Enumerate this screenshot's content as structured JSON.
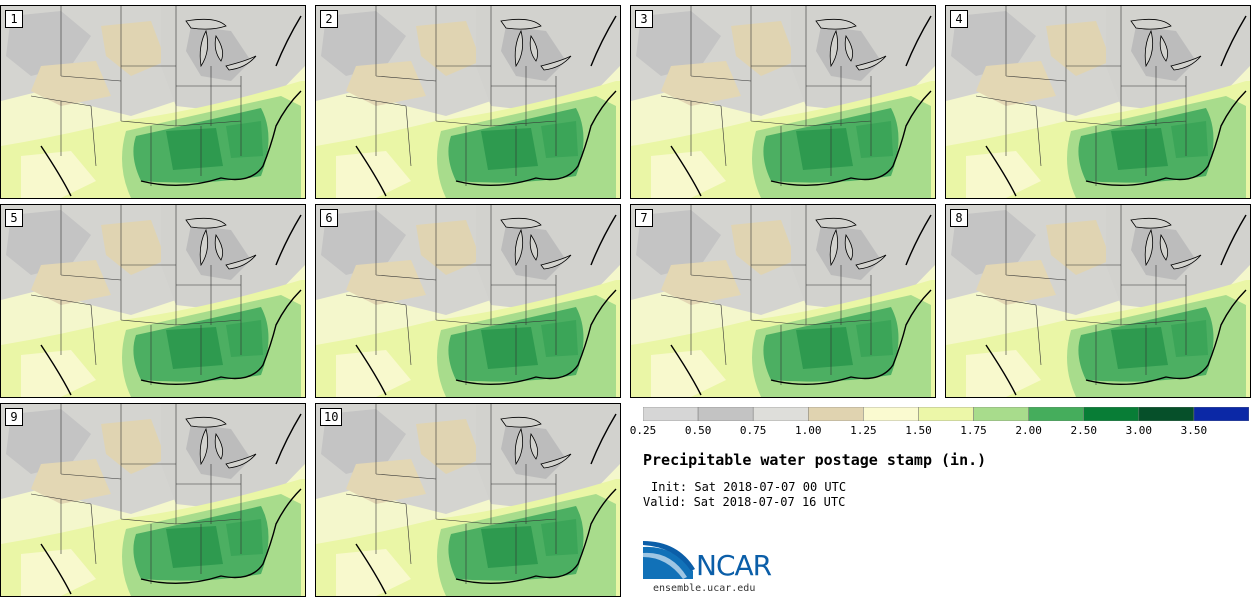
{
  "panels": [
    {
      "label": "1"
    },
    {
      "label": "2"
    },
    {
      "label": "3"
    },
    {
      "label": "4"
    },
    {
      "label": "5"
    },
    {
      "label": "6"
    },
    {
      "label": "7"
    },
    {
      "label": "8"
    },
    {
      "label": "9"
    },
    {
      "label": "10"
    }
  ],
  "legend": {
    "ticks": [
      "0.25",
      "0.50",
      "0.75",
      "1.00",
      "1.25",
      "1.50",
      "1.75",
      "2.00",
      "2.50",
      "3.00",
      "3.50"
    ],
    "colors": [
      "#d6d6d6",
      "#c3c3c3",
      "#dededa",
      "#e0d3b0",
      "#fafad0",
      "#ecf7a8",
      "#a8dc8c",
      "#45ad5c",
      "#087d36",
      "#06502a",
      "#0b28a6"
    ]
  },
  "title": "Precipitable water postage stamp (in.)",
  "init": "Init: Sat 2018-07-07 00 UTC",
  "valid": "Valid: Sat 2018-07-07 16 UTC",
  "logo": {
    "text": "NCAR",
    "url": "ensemble.ucar.edu"
  }
}
